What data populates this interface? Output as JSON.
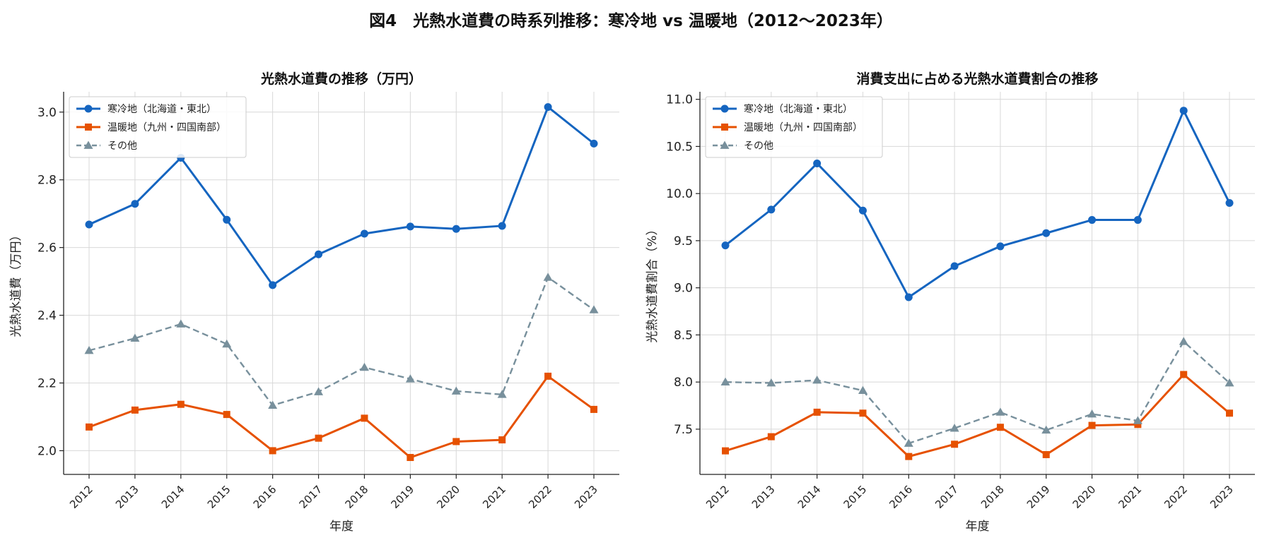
{
  "figure_title": "図4　光熱水道費の時系列推移：寒冷地 vs 温暖地（2012〜2023年）",
  "colors": {
    "cold": "#1565c0",
    "warm": "#e65100",
    "other": "#78909c"
  },
  "chart_data": [
    {
      "type": "line",
      "title": "光熱水道費の推移（万円）",
      "xlabel": "年度",
      "ylabel": "光熱水道費（万円）",
      "x": [
        "2012",
        "2013",
        "2014",
        "2015",
        "2016",
        "2017",
        "2018",
        "2019",
        "2020",
        "2021",
        "2022",
        "2023"
      ],
      "ylim": [
        1.93,
        3.06
      ],
      "yticks": [
        2.0,
        2.2,
        2.4,
        2.6,
        2.8,
        3.0
      ],
      "ytick_labels": [
        "2.0",
        "2.2",
        "2.4",
        "2.6",
        "2.8",
        "3.0"
      ],
      "grid": true,
      "legend_position": "top-left",
      "series": [
        {
          "name": "寒冷地（北海道・東北）",
          "marker": "circle",
          "dash": "solid",
          "color": "#1565c0",
          "values": [
            2.668,
            2.729,
            2.865,
            2.682,
            2.489,
            2.58,
            2.641,
            2.662,
            2.655,
            2.664,
            3.015,
            2.907
          ]
        },
        {
          "name": "温暖地（九州・四国南部）",
          "marker": "square",
          "dash": "solid",
          "color": "#e65100",
          "values": [
            2.07,
            2.12,
            2.137,
            2.107,
            2.0,
            2.037,
            2.096,
            1.98,
            2.027,
            2.032,
            2.22,
            2.122
          ]
        },
        {
          "name": "その他",
          "marker": "triangle",
          "dash": "dashed",
          "color": "#78909c",
          "values": [
            2.296,
            2.332,
            2.374,
            2.315,
            2.134,
            2.174,
            2.246,
            2.212,
            2.176,
            2.166,
            2.512,
            2.416
          ]
        }
      ]
    },
    {
      "type": "line",
      "title": "消費支出に占める光熱水道費割合の推移",
      "xlabel": "年度",
      "ylabel": "光熱水道費割合（%）",
      "x": [
        "2012",
        "2013",
        "2014",
        "2015",
        "2016",
        "2017",
        "2018",
        "2019",
        "2020",
        "2021",
        "2022",
        "2023"
      ],
      "ylim": [
        7.02,
        11.08
      ],
      "yticks": [
        7.5,
        8.0,
        8.5,
        9.0,
        9.5,
        10.0,
        10.5,
        11.0
      ],
      "ytick_labels": [
        "7.5",
        "8.0",
        "8.5",
        "9.0",
        "9.5",
        "10.0",
        "10.5",
        "11.0"
      ],
      "grid": true,
      "legend_position": "top-left",
      "series": [
        {
          "name": "寒冷地（北海道・東北）",
          "marker": "circle",
          "dash": "solid",
          "color": "#1565c0",
          "values": [
            9.45,
            9.83,
            10.32,
            9.82,
            8.9,
            9.23,
            9.44,
            9.58,
            9.72,
            9.72,
            10.88,
            9.9
          ]
        },
        {
          "name": "温暖地（九州・四国南部）",
          "marker": "square",
          "dash": "solid",
          "color": "#e65100",
          "values": [
            7.27,
            7.42,
            7.68,
            7.67,
            7.21,
            7.34,
            7.52,
            7.23,
            7.54,
            7.55,
            8.08,
            7.67
          ]
        },
        {
          "name": "その他",
          "marker": "triangle",
          "dash": "dashed",
          "color": "#78909c",
          "values": [
            8.0,
            7.99,
            8.02,
            7.91,
            7.35,
            7.51,
            7.68,
            7.49,
            7.66,
            7.59,
            8.43,
            7.99
          ]
        }
      ]
    }
  ]
}
